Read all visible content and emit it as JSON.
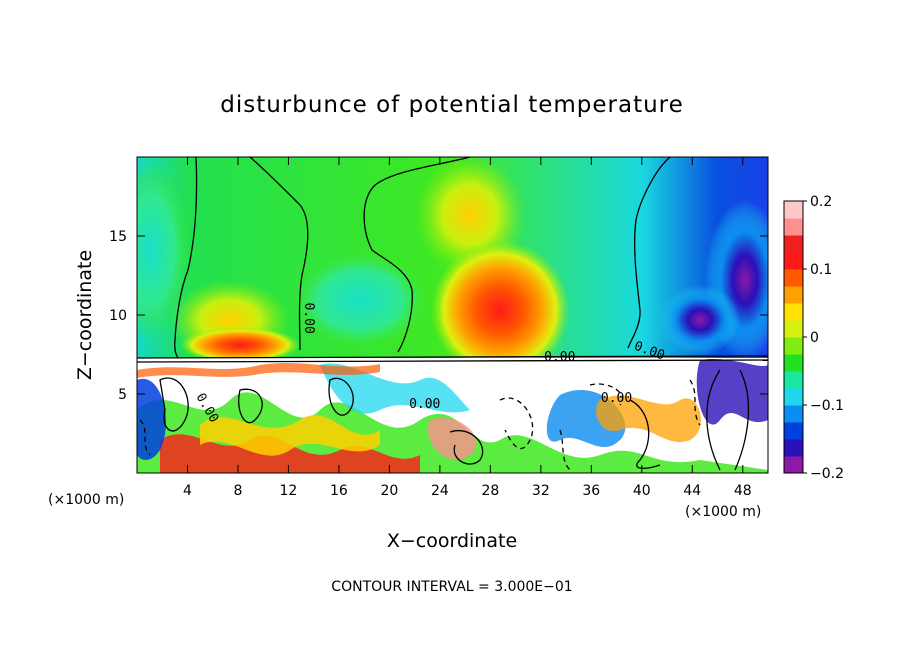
{
  "chart_data": {
    "type": "heatmap",
    "title": "disturbunce of potential temperature",
    "xlabel": "X−coordinate",
    "ylabel": "Z−coordinate",
    "x_unit_left": "(×1000 m)",
    "x_unit_right": "(×1000 m)",
    "xlim": [
      0,
      50
    ],
    "ylim": [
      0,
      20
    ],
    "x_ticks": [
      {
        "value": 4,
        "label": "4"
      },
      {
        "value": 8,
        "label": "8"
      },
      {
        "value": 12,
        "label": "12"
      },
      {
        "value": 16,
        "label": "16"
      },
      {
        "value": 20,
        "label": "20"
      },
      {
        "value": 24,
        "label": "24"
      },
      {
        "value": 28,
        "label": "28"
      },
      {
        "value": 32,
        "label": "32"
      },
      {
        "value": 36,
        "label": "36"
      },
      {
        "value": 40,
        "label": "40"
      },
      {
        "value": 44,
        "label": "44"
      },
      {
        "value": 48,
        "label": "48"
      }
    ],
    "y_ticks": [
      {
        "value": 5,
        "label": "5"
      },
      {
        "value": 10,
        "label": "10"
      },
      {
        "value": 15,
        "label": "15"
      }
    ],
    "colorbar": {
      "vmin": -0.2,
      "vmax": 0.2,
      "ticks": [
        {
          "value": 0.2,
          "label": "0.2"
        },
        {
          "value": 0.1,
          "label": "0.1"
        },
        {
          "value": 0,
          "label": "0"
        },
        {
          "value": -0.1,
          "label": "−0.1"
        },
        {
          "value": -0.2,
          "label": "−0.2"
        }
      ],
      "colors": [
        "#8b1aa6",
        "#2a10b8",
        "#0040e0",
        "#0b8cf0",
        "#1fd8f0",
        "#19e8a0",
        "#22e022",
        "#80ee10",
        "#d8f010",
        "#ffe000",
        "#ffa000",
        "#ff5a00",
        "#ff1a1a",
        "#ee2020",
        "#ff9090",
        "#ffc8c8"
      ]
    },
    "contour_labels": [
      {
        "text": "0.00",
        "x": 13.3,
        "y": 9.8,
        "rotate": 90
      },
      {
        "text": "0.00",
        "x": 33.5,
        "y": 7.1,
        "rotate": 0
      },
      {
        "text": "0.00",
        "x": 40.5,
        "y": 7.5,
        "rotate": 20
      },
      {
        "text": "0.00",
        "x": 22.8,
        "y": 4.1,
        "rotate": 0
      },
      {
        "text": "0.00",
        "x": 38.0,
        "y": 4.5,
        "rotate": 0
      },
      {
        "text": "0.00",
        "x": 5.3,
        "y": 4.0,
        "rotate": 60
      }
    ],
    "contour_interval_text": "CONTOUR INTERVAL = 3.000E−01",
    "grid": false,
    "legend": "colorbar-right"
  }
}
